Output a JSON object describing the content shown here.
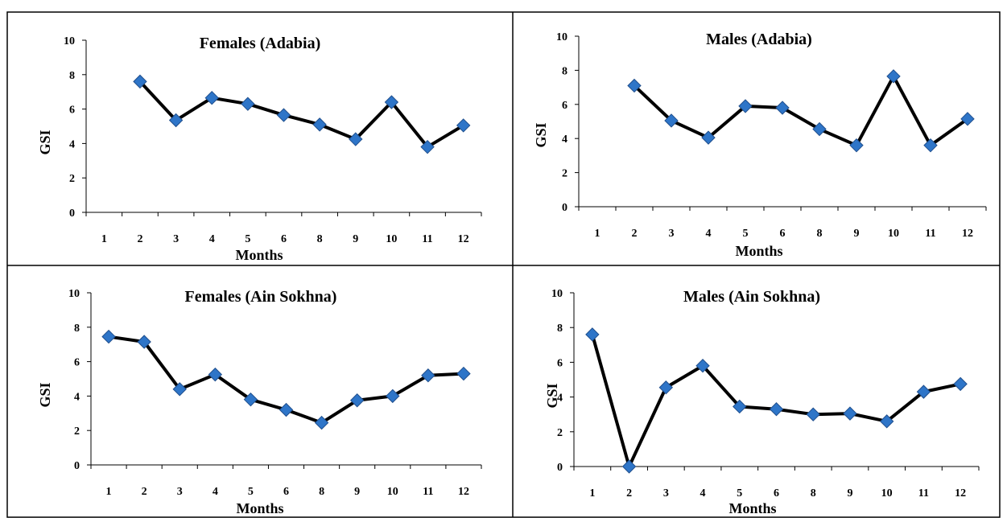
{
  "chart_data": [
    {
      "type": "line",
      "title": "Females (Adabia)",
      "xlabel": "Months",
      "ylabel": "GSI",
      "categories": [
        "1",
        "2",
        "3",
        "4",
        "5",
        "6",
        "8",
        "9",
        "10",
        "11",
        "12"
      ],
      "values": [
        null,
        7.6,
        5.35,
        6.65,
        6.3,
        5.65,
        5.1,
        4.25,
        6.4,
        3.8,
        5.05
      ],
      "ylim": [
        0,
        10
      ],
      "yticks": [
        "0",
        "2",
        "4",
        "6",
        "8",
        "10"
      ],
      "grid": false,
      "line_color": "#000000",
      "marker_color": "#2E75C8",
      "marker": "diamond"
    },
    {
      "type": "line",
      "title": "Males (Adabia)",
      "xlabel": "Months",
      "ylabel": "GSI",
      "categories": [
        "1",
        "2",
        "3",
        "4",
        "5",
        "6",
        "8",
        "9",
        "10",
        "11",
        "12"
      ],
      "values": [
        null,
        7.1,
        5.05,
        4.05,
        5.9,
        5.8,
        4.55,
        3.6,
        7.65,
        3.6,
        5.15
      ],
      "ylim": [
        0,
        10
      ],
      "yticks": [
        "0",
        "2",
        "4",
        "6",
        "8",
        "10"
      ],
      "grid": false,
      "line_color": "#000000",
      "marker_color": "#2E75C8",
      "marker": "diamond"
    },
    {
      "type": "line",
      "title": "Females (Ain Sokhna)",
      "xlabel": "Months",
      "ylabel": "GSI",
      "categories": [
        "1",
        "2",
        "3",
        "4",
        "5",
        "6",
        "8",
        "9",
        "10",
        "11",
        "12"
      ],
      "values": [
        7.45,
        7.15,
        4.4,
        5.25,
        3.8,
        3.2,
        2.45,
        3.75,
        4.0,
        5.2,
        5.3
      ],
      "ylim": [
        0,
        10
      ],
      "yticks": [
        "0",
        "2",
        "4",
        "6",
        "8",
        "10"
      ],
      "grid": false,
      "line_color": "#000000",
      "marker_color": "#2E75C8",
      "marker": "diamond"
    },
    {
      "type": "line",
      "title": "Males (Ain Sokhna)",
      "xlabel": "Months",
      "ylabel": "GSI",
      "categories": [
        "1",
        "2",
        "3",
        "4",
        "5",
        "6",
        "8",
        "9",
        "10",
        "11",
        "12"
      ],
      "values": [
        7.6,
        0.0,
        4.55,
        5.8,
        3.45,
        3.3,
        3.0,
        3.05,
        2.6,
        4.3,
        4.75
      ],
      "ylim": [
        0,
        10
      ],
      "yticks": [
        "0",
        "2",
        "4",
        "6",
        "8",
        "10"
      ],
      "grid": false,
      "line_color": "#000000",
      "marker_color": "#2E75C8",
      "marker": "diamond"
    }
  ]
}
